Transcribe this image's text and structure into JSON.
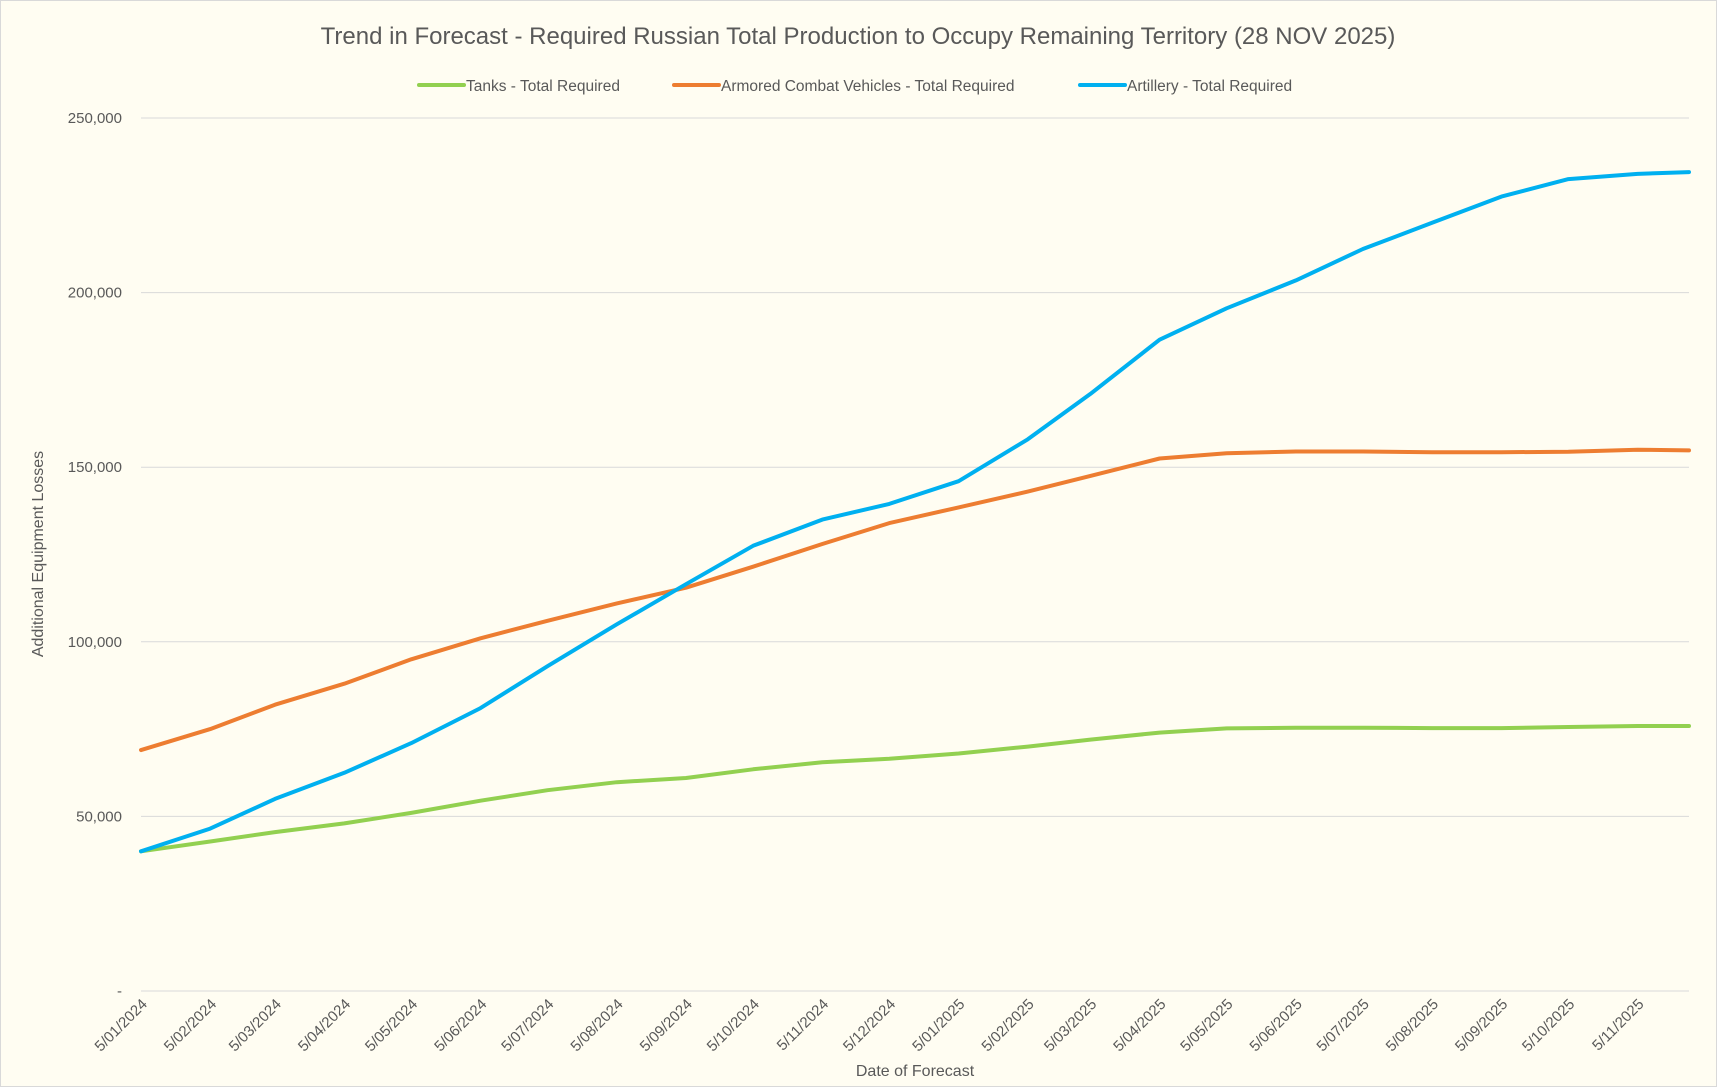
{
  "chart_data": {
    "type": "line",
    "title": "Trend in Forecast - Required Russian Total Production to Occupy Remaining Territory (28 NOV 2025)",
    "xlabel": "Date of Forecast",
    "ylabel": "Additional Equipment Losses",
    "ylim": [
      0,
      250000
    ],
    "y_ticks": [
      0,
      50000,
      100000,
      150000,
      200000,
      250000
    ],
    "y_tick_labels": [
      "-",
      "50,000",
      "100,000",
      "150,000",
      "200,000",
      "250,000"
    ],
    "x_range": [
      "2024-01-05",
      "2025-11-28"
    ],
    "x_ticks": [
      "2024-01-05",
      "2024-02-05",
      "2024-03-05",
      "2024-04-05",
      "2024-05-05",
      "2024-06-05",
      "2024-07-05",
      "2024-08-05",
      "2024-09-05",
      "2024-10-05",
      "2024-11-05",
      "2024-12-05",
      "2025-01-05",
      "2025-02-05",
      "2025-03-05",
      "2025-04-05",
      "2025-05-05",
      "2025-06-05",
      "2025-07-05",
      "2025-08-05",
      "2025-09-05",
      "2025-10-05",
      "2025-11-05"
    ],
    "x_tick_labels": [
      "5/01/2024",
      "5/02/2024",
      "5/03/2024",
      "5/04/2024",
      "5/05/2024",
      "5/06/2024",
      "5/07/2024",
      "5/08/2024",
      "5/09/2024",
      "5/10/2024",
      "5/11/2024",
      "5/12/2024",
      "5/01/2025",
      "5/02/2025",
      "5/03/2025",
      "5/04/2025",
      "5/05/2025",
      "5/06/2025",
      "5/07/2025",
      "5/08/2025",
      "5/09/2025",
      "5/10/2025",
      "5/11/2025"
    ],
    "grid": "horizontal",
    "legend": "top",
    "series": [
      {
        "name": "Tanks - Total Required",
        "color": "#92d050",
        "points": [
          [
            "2024-01-05",
            40000
          ],
          [
            "2024-02-05",
            42800
          ],
          [
            "2024-03-05",
            45500
          ],
          [
            "2024-04-05",
            48000
          ],
          [
            "2024-05-05",
            51000
          ],
          [
            "2024-06-05",
            54500
          ],
          [
            "2024-07-05",
            57500
          ],
          [
            "2024-08-05",
            59800
          ],
          [
            "2024-09-05",
            61000
          ],
          [
            "2024-10-05",
            63500
          ],
          [
            "2024-11-05",
            65500
          ],
          [
            "2024-12-05",
            66500
          ],
          [
            "2025-01-05",
            68000
          ],
          [
            "2025-02-05",
            70000
          ],
          [
            "2025-03-05",
            72000
          ],
          [
            "2025-04-05",
            74000
          ],
          [
            "2025-05-05",
            75200
          ],
          [
            "2025-06-05",
            75400
          ],
          [
            "2025-07-05",
            75400
          ],
          [
            "2025-08-05",
            75300
          ],
          [
            "2025-09-05",
            75300
          ],
          [
            "2025-10-05",
            75600
          ],
          [
            "2025-11-05",
            75900
          ],
          [
            "2025-11-28",
            75900
          ]
        ]
      },
      {
        "name": "Armored Combat Vehicles - Total Required",
        "color": "#ed7d31",
        "points": [
          [
            "2024-01-05",
            69000
          ],
          [
            "2024-02-05",
            75000
          ],
          [
            "2024-03-05",
            82000
          ],
          [
            "2024-04-05",
            88000
          ],
          [
            "2024-05-05",
            95000
          ],
          [
            "2024-06-05",
            101000
          ],
          [
            "2024-07-05",
            106000
          ],
          [
            "2024-08-05",
            111000
          ],
          [
            "2024-09-05",
            115500
          ],
          [
            "2024-10-05",
            121500
          ],
          [
            "2024-11-05",
            128000
          ],
          [
            "2024-12-05",
            134000
          ],
          [
            "2025-01-05",
            138500
          ],
          [
            "2025-02-05",
            143000
          ],
          [
            "2025-03-05",
            147500
          ],
          [
            "2025-04-05",
            152500
          ],
          [
            "2025-05-05",
            154000
          ],
          [
            "2025-06-05",
            154500
          ],
          [
            "2025-07-05",
            154500
          ],
          [
            "2025-08-05",
            154300
          ],
          [
            "2025-09-05",
            154300
          ],
          [
            "2025-10-05",
            154400
          ],
          [
            "2025-11-05",
            155000
          ],
          [
            "2025-11-28",
            154800
          ]
        ]
      },
      {
        "name": "Artillery - Total Required",
        "color": "#00b0f0",
        "points": [
          [
            "2024-01-05",
            40000
          ],
          [
            "2024-02-05",
            46500
          ],
          [
            "2024-03-05",
            55000
          ],
          [
            "2024-04-05",
            62500
          ],
          [
            "2024-05-05",
            71000
          ],
          [
            "2024-06-05",
            81000
          ],
          [
            "2024-07-05",
            93000
          ],
          [
            "2024-08-05",
            105000
          ],
          [
            "2024-09-05",
            116500
          ],
          [
            "2024-10-05",
            127500
          ],
          [
            "2024-11-05",
            135000
          ],
          [
            "2024-12-05",
            139500
          ],
          [
            "2025-01-05",
            146000
          ],
          [
            "2025-02-05",
            158000
          ],
          [
            "2025-03-05",
            171000
          ],
          [
            "2025-04-05",
            186500
          ],
          [
            "2025-05-05",
            195500
          ],
          [
            "2025-06-05",
            203500
          ],
          [
            "2025-07-05",
            212500
          ],
          [
            "2025-08-05",
            220000
          ],
          [
            "2025-09-05",
            227500
          ],
          [
            "2025-10-05",
            232500
          ],
          [
            "2025-11-05",
            234000
          ],
          [
            "2025-11-28",
            234500
          ]
        ]
      }
    ]
  }
}
